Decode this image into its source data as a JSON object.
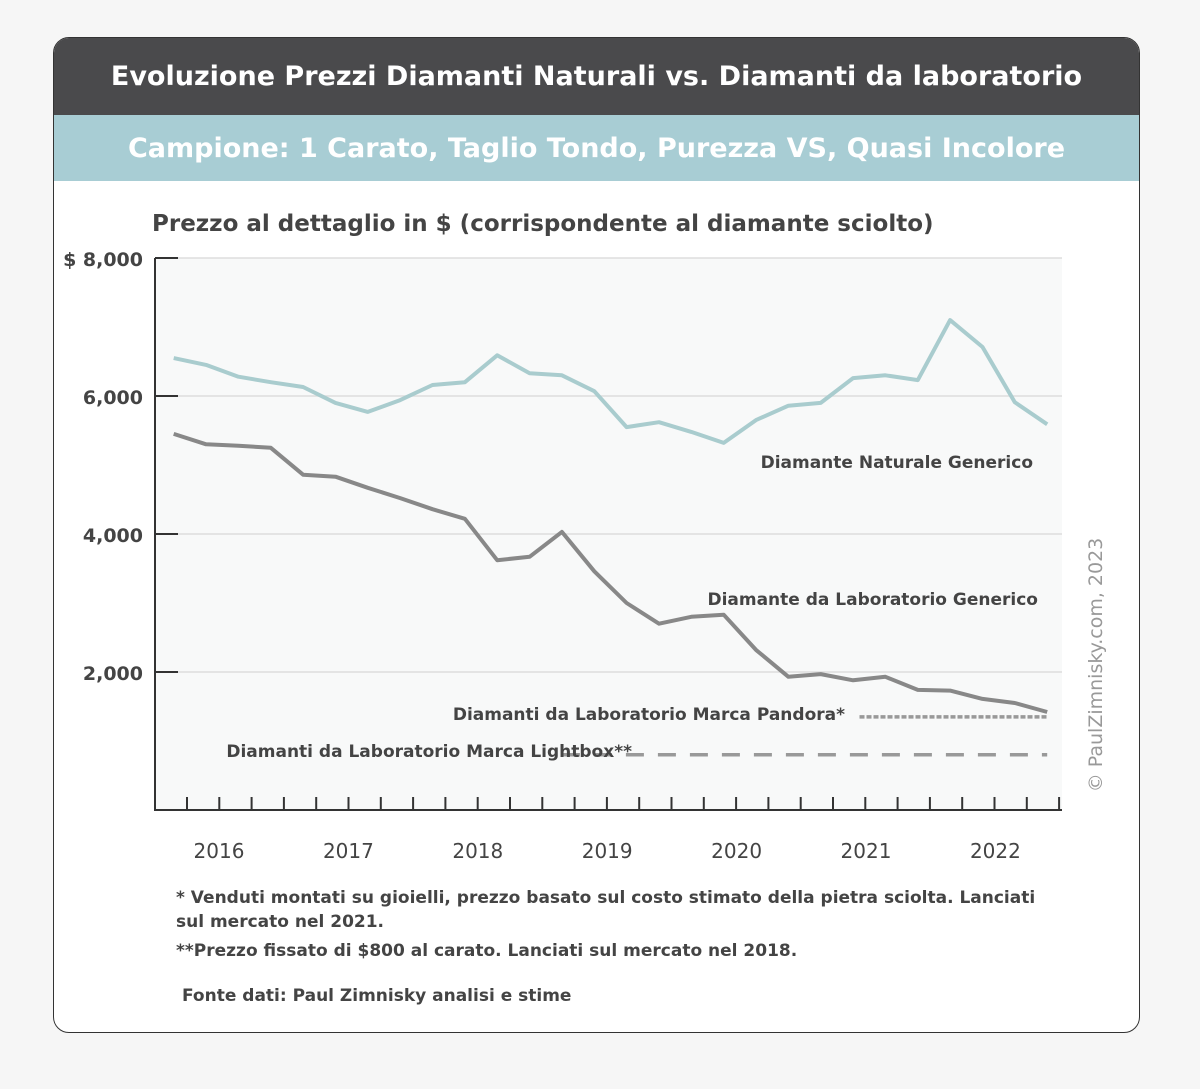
{
  "header": {
    "title": "Evoluzione Prezzi Diamanti Naturali vs. Diamanti da laboratorio",
    "subtitle": "Campione: 1 Carato, Taglio Tondo, Purezza VS, Quasi Incolore"
  },
  "chart_data": {
    "type": "line",
    "title": "Prezzo al dettaglio in $ (corrispondente al diamante sciolto)",
    "ylim": [
      0,
      8000
    ],
    "yticks": [
      {
        "v": 8000,
        "label": "$ 8,000"
      },
      {
        "v": 6000,
        "label": "6,000"
      },
      {
        "v": 4000,
        "label": "4,000"
      },
      {
        "v": 2000,
        "label": "2,000"
      }
    ],
    "xticks": [
      "2016",
      "2017",
      "2018",
      "2019",
      "2020",
      "2021",
      "2022"
    ],
    "grid": true,
    "x_start": 2015.75,
    "x_step": 0.25,
    "series": [
      {
        "name": "Diamante Naturale Generico",
        "color": "#a9ccce",
        "style": "solid",
        "values": [
          6550,
          6450,
          6280,
          6200,
          6130,
          5900,
          5770,
          5940,
          6160,
          6200,
          6590,
          6330,
          6300,
          6070,
          5550,
          5620,
          5480,
          5320,
          5650,
          5860,
          5900,
          6260,
          6300,
          6230,
          7100,
          6710,
          5910,
          5590
        ]
      },
      {
        "name": "Diamante da Laboratorio Generico",
        "color": "#888888",
        "style": "solid",
        "values": [
          5450,
          5300,
          5280,
          5250,
          4860,
          4830,
          4670,
          4520,
          4360,
          4220,
          3620,
          3670,
          4030,
          3460,
          3000,
          2700,
          2800,
          2830,
          2320,
          1930,
          1970,
          1880,
          1930,
          1740,
          1730,
          1610,
          1550,
          1420
        ]
      },
      {
        "name": "Diamanti da Laboratorio Marca Pandora*",
        "color": "#999999",
        "style": "dotted",
        "x": [
          2021.05,
          2022.5
        ],
        "values": [
          1350,
          1350
        ]
      },
      {
        "name": "Diamanti da Laboratorio Marca Lightbox**",
        "color": "#999999",
        "style": "dashed",
        "x": [
          2018.75,
          2022.5
        ],
        "values": [
          800,
          800
        ]
      }
    ],
    "watermark": "© PaulZimnisky.com, 2023"
  },
  "footnotes": [
    "* Venduti montati su gioielli, prezzo basato sul costo stimato della pietra sciolta. Lanciati sul mercato nel 2021.",
    "**Prezzo fissato di $800 al carato. Lanciati sul mercato nel 2018."
  ],
  "source": "Fonte dati: Paul Zimnisky analisi e stime"
}
